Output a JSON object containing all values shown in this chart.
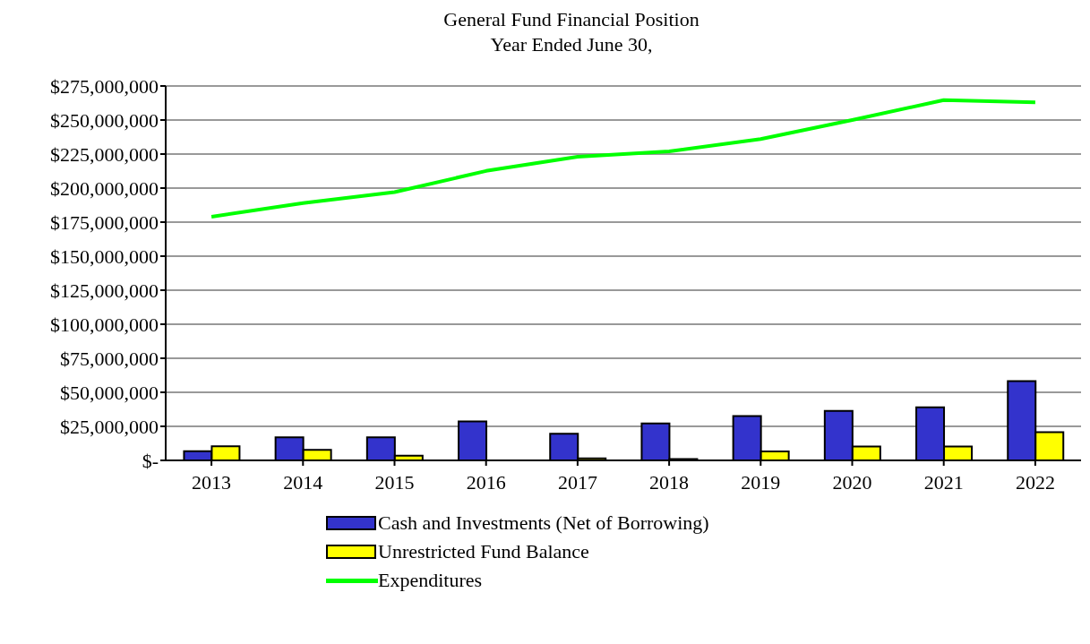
{
  "chart_data": {
    "type": "bar",
    "title": "General Fund Financial Position",
    "subtitle": "Year Ended June 30,",
    "categories": [
      "2013",
      "2014",
      "2015",
      "2016",
      "2017",
      "2018",
      "2019",
      "2020",
      "2021",
      "2022"
    ],
    "series": [
      {
        "name": "Cash and Investments (Net of Borrowing)",
        "color": "#3333cc",
        "values": [
          6700000,
          16900000,
          17000000,
          28600000,
          19500000,
          27100000,
          32500000,
          36400000,
          39000000,
          58300000
        ]
      },
      {
        "name": "Unrestricted Fund Balance",
        "color": "#ffff00",
        "values": [
          10400000,
          7800000,
          3400000,
          null,
          1500000,
          1000000,
          6500000,
          10200000,
          10200000,
          20800000
        ]
      },
      {
        "name": "Expenditures",
        "type": "line",
        "color": "#00ff00",
        "values": [
          179000000,
          189000000,
          197000000,
          212600000,
          223000000,
          227000000,
          236000000,
          250000000,
          264600000,
          263000000
        ]
      }
    ],
    "ylim": [
      0,
      275000000
    ],
    "yticks": [
      {
        "value": 0,
        "label": "$-"
      },
      {
        "value": 25000000,
        "label": "$25,000,000"
      },
      {
        "value": 50000000,
        "label": "$50,000,000"
      },
      {
        "value": 75000000,
        "label": "$75,000,000"
      },
      {
        "value": 100000000,
        "label": "$100,000,000"
      },
      {
        "value": 125000000,
        "label": "$125,000,000"
      },
      {
        "value": 150000000,
        "label": "$150,000,000"
      },
      {
        "value": 175000000,
        "label": "$175,000,000"
      },
      {
        "value": 200000000,
        "label": "$200,000,000"
      },
      {
        "value": 225000000,
        "label": "$225,000,000"
      },
      {
        "value": 250000000,
        "label": "$250,000,000"
      },
      {
        "value": 275000000,
        "label": "$275,000,000"
      }
    ],
    "grid": "y",
    "legend": "bottom",
    "marker": "none",
    "line_style": "solid"
  }
}
